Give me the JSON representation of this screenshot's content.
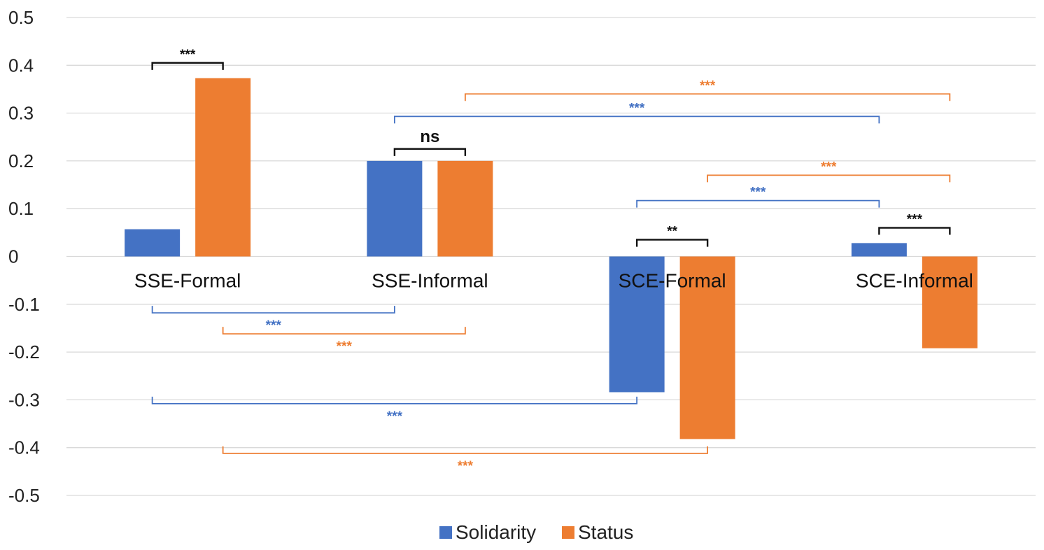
{
  "chart_data": {
    "type": "bar",
    "categories": [
      "SSE-Formal",
      "SSE-Informal",
      "SCE-Formal",
      "SCE-Informal"
    ],
    "series": [
      {
        "name": "Solidarity",
        "color": "#4472C4",
        "values": [
          0.057,
          0.2,
          -0.284,
          0.028
        ]
      },
      {
        "name": "Status",
        "color": "#ED7D31",
        "values": [
          0.373,
          0.2,
          -0.382,
          -0.192
        ]
      }
    ],
    "ylim": [
      -0.5,
      0.5
    ],
    "yticks": [
      "0.5",
      "0.4",
      "0.3",
      "0.2",
      "0.1",
      "0",
      "-0.1",
      "-0.2",
      "-0.3",
      "-0.4",
      "-0.5"
    ],
    "ytick_values": [
      0.5,
      0.4,
      0.3,
      0.2,
      0.1,
      0,
      -0.1,
      -0.2,
      -0.3,
      -0.4,
      -0.5
    ],
    "grid": true,
    "legend_position": "bottom",
    "significance": [
      {
        "from": [
          0,
          0
        ],
        "to": [
          0,
          1
        ],
        "label": "***",
        "color": "#111111",
        "level": 0.405,
        "side": "above"
      },
      {
        "from": [
          1,
          0
        ],
        "to": [
          1,
          1
        ],
        "label": "ns",
        "color": "#111111",
        "level": 0.225,
        "side": "above"
      },
      {
        "from": [
          2,
          0
        ],
        "to": [
          2,
          1
        ],
        "label": "**",
        "color": "#111111",
        "level": 0.035,
        "side": "above"
      },
      {
        "from": [
          3,
          0
        ],
        "to": [
          3,
          1
        ],
        "label": "***",
        "color": "#111111",
        "level": 0.06,
        "side": "above"
      },
      {
        "from": [
          1,
          1
        ],
        "to": [
          3,
          1
        ],
        "label": "***",
        "color": "#ED7D31",
        "level": 0.34,
        "side": "above"
      },
      {
        "from": [
          1,
          0
        ],
        "to": [
          3,
          0
        ],
        "label": "***",
        "color": "#4472C4",
        "level": 0.293,
        "side": "above"
      },
      {
        "from": [
          2,
          1
        ],
        "to": [
          3,
          1
        ],
        "label": "***",
        "color": "#ED7D31",
        "level": 0.17,
        "side": "above"
      },
      {
        "from": [
          2,
          0
        ],
        "to": [
          3,
          0
        ],
        "label": "***",
        "color": "#4472C4",
        "level": 0.117,
        "side": "above"
      },
      {
        "from": [
          0,
          0
        ],
        "to": [
          1,
          0
        ],
        "label": "***",
        "color": "#4472C4",
        "level": -0.118,
        "side": "below"
      },
      {
        "from": [
          0,
          1
        ],
        "to": [
          1,
          1
        ],
        "label": "***",
        "color": "#ED7D31",
        "level": -0.162,
        "side": "below"
      },
      {
        "from": [
          0,
          0
        ],
        "to": [
          2,
          0
        ],
        "label": "***",
        "color": "#4472C4",
        "level": -0.308,
        "side": "below"
      },
      {
        "from": [
          0,
          1
        ],
        "to": [
          2,
          1
        ],
        "label": "***",
        "color": "#ED7D31",
        "level": -0.412,
        "side": "below"
      }
    ]
  }
}
